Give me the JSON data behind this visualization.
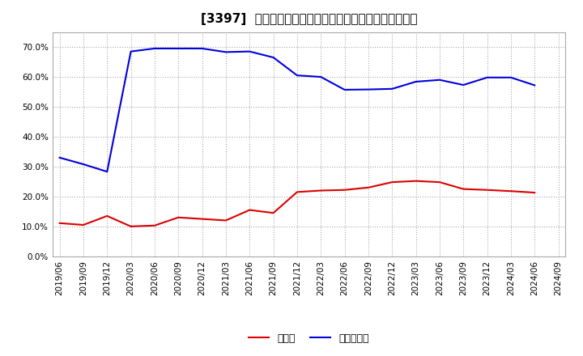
{
  "title": "[3397]  現預金、有利子負債の総資産に対する比率の推移",
  "x_labels": [
    "2019/06",
    "2019/09",
    "2019/12",
    "2020/03",
    "2020/06",
    "2020/09",
    "2020/12",
    "2021/03",
    "2021/06",
    "2021/09",
    "2021/12",
    "2022/03",
    "2022/06",
    "2022/09",
    "2022/12",
    "2023/03",
    "2023/06",
    "2023/09",
    "2023/12",
    "2024/03",
    "2024/06",
    "2024/09"
  ],
  "cash_values": [
    0.111,
    0.105,
    0.135,
    0.1,
    0.103,
    0.13,
    0.125,
    0.12,
    0.155,
    0.145,
    0.215,
    0.22,
    0.222,
    0.23,
    0.248,
    0.252,
    0.248,
    0.225,
    0.222,
    0.218,
    0.213,
    null
  ],
  "debt_values": [
    0.33,
    0.308,
    0.283,
    0.685,
    0.695,
    0.695,
    0.695,
    0.683,
    0.685,
    0.665,
    0.605,
    0.6,
    0.557,
    0.558,
    0.56,
    0.584,
    0.59,
    0.573,
    0.598,
    0.598,
    0.572,
    null
  ],
  "ylim": [
    0.0,
    0.75
  ],
  "yticks": [
    0.0,
    0.1,
    0.2,
    0.3,
    0.4,
    0.5,
    0.6,
    0.7
  ],
  "cash_color": "#dd0000",
  "debt_color": "#0000dd",
  "grid_color": "#aaaaaa",
  "bg_color": "#ffffff",
  "legend_cash": "現預金",
  "legend_debt": "有利子負債",
  "title_fontsize": 11,
  "tick_fontsize": 7.5,
  "legend_fontsize": 9,
  "line_width": 1.5
}
